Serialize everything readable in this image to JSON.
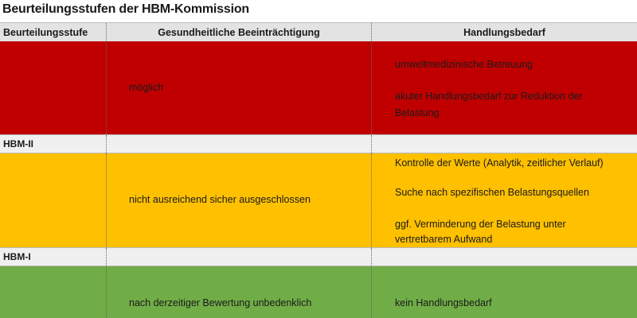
{
  "title": "Beurteilungsstufen der HBM-Kommission",
  "header": {
    "col1": "Beurteilungsstufe",
    "col2": "Gesundheitliche Beeinträchtigung",
    "col3": "Handlungsbedarf"
  },
  "rows": [
    {
      "level": "",
      "color": "#C00000",
      "impairment": "möglich",
      "actions": [
        "umweltmedizinische Betreuung",
        "akuter Handlungsbedarf zur Reduktion der Belastung"
      ]
    },
    {
      "separator": "HBM-II"
    },
    {
      "level": "",
      "color": "#FFC000",
      "impairment": "nicht ausreichend sicher ausgeschlossen",
      "actions": [
        "Kontrolle der Werte (Analytik, zeitlicher Verlauf)",
        "Suche nach spezifischen Belastungsquellen",
        "ggf. Verminderung der Belastung unter vertretbarem Aufwand"
      ]
    },
    {
      "separator": "HBM-I"
    },
    {
      "level": "",
      "color": "#70AD47",
      "impairment": "nach derzeitiger Bewertung unbedenklich",
      "actions": [
        "kein Handlungsbedarf"
      ]
    }
  ]
}
